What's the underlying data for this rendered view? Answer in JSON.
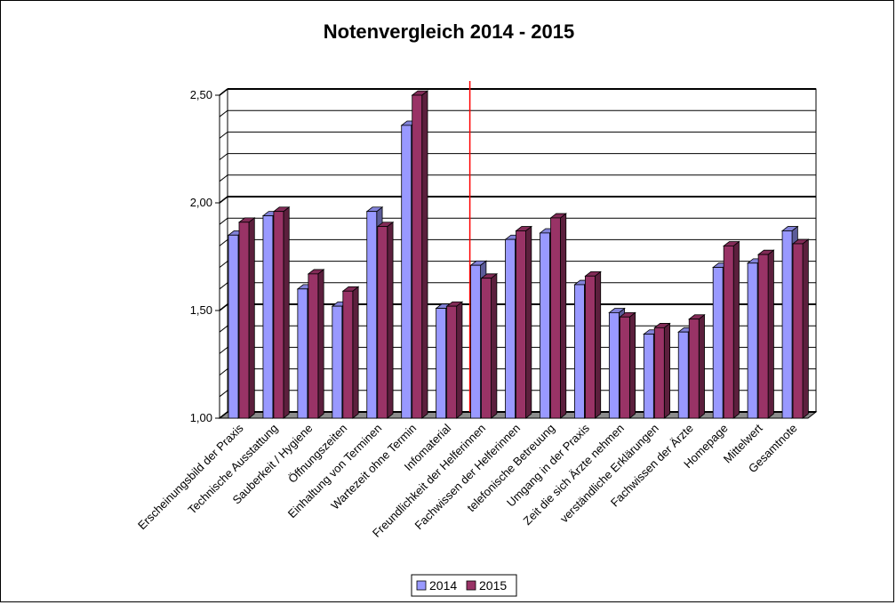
{
  "chart_data": {
    "type": "bar",
    "title": "Notenvergleich 2014 - 2015",
    "xlabel": "",
    "ylabel": "",
    "ylim": [
      1.0,
      2.5
    ],
    "yticks": [
      "1,00",
      "1,50",
      "2,00",
      "2,50"
    ],
    "grid": true,
    "legend_position": "bottom",
    "colors": {
      "2014": "#9999ff",
      "2015": "#993366",
      "divider": "#ff0000",
      "floor": "#8c8c8c"
    },
    "divider_after_index": 6,
    "categories": [
      "Erscheinungsbild der Praxis",
      "Technische Ausstattung",
      "Sauberkeit / Hygiene",
      "Öffnungszeiten",
      "Einhaltung von Terminen",
      "Wartezeit ohne Termin",
      "Infomaterial",
      "Freundlichkeit der Helferinnen",
      "Fachwissen der Helferinnen",
      "telefonische Betreuung",
      "Umgang in der Praxis",
      "Zeit die sich Ärzte nehmen",
      "verständliche Erklärungen",
      "Fachwissen der Ärzte",
      "Homepage",
      "Mittelwert",
      "Gesamtnote"
    ],
    "series": [
      {
        "name": "2014",
        "values": [
          1.85,
          1.94,
          1.6,
          1.52,
          1.96,
          2.36,
          1.51,
          1.71,
          1.83,
          1.86,
          1.62,
          1.49,
          1.39,
          1.4,
          1.7,
          1.72,
          1.87
        ]
      },
      {
        "name": "2015",
        "values": [
          1.91,
          1.96,
          1.67,
          1.59,
          1.89,
          2.5,
          1.52,
          1.65,
          1.87,
          1.93,
          1.66,
          1.47,
          1.42,
          1.46,
          1.8,
          1.76,
          1.81
        ]
      }
    ]
  }
}
